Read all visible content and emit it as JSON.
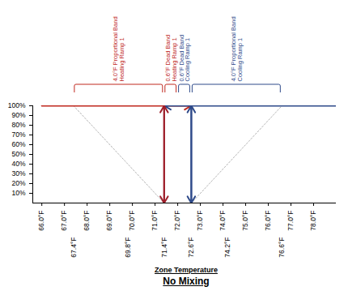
{
  "chart_data": {
    "type": "line",
    "title": "No Mixing",
    "xlabel": "Zone Temperature",
    "xlim": [
      65.6,
      79.0
    ],
    "xticks": [
      {
        "value": 66,
        "label": "66.0°F"
      },
      {
        "value": 67,
        "label": "67.0°F"
      },
      {
        "value": 68,
        "label": "68.0°F"
      },
      {
        "value": 69,
        "label": "69.0°F"
      },
      {
        "value": 70,
        "label": "70.0°F"
      },
      {
        "value": 71,
        "label": "71.0°F"
      },
      {
        "value": 72,
        "label": "72.0°F"
      },
      {
        "value": 73,
        "label": "73.0°F"
      },
      {
        "value": 74,
        "label": "74.0°F"
      },
      {
        "value": 75,
        "label": "75.0°F"
      },
      {
        "value": 76,
        "label": "76.0°F"
      },
      {
        "value": 77,
        "label": "77.0°F"
      },
      {
        "value": 78,
        "label": "78.0°F"
      }
    ],
    "xticks2": [
      {
        "value": 67.4,
        "label": "67.4°F"
      },
      {
        "value": 69.8,
        "label": "69.8°F"
      },
      {
        "value": 71.4,
        "label": "71.4°F"
      },
      {
        "value": 72.6,
        "label": "72.6°F"
      },
      {
        "value": 74.2,
        "label": "74.2°F"
      },
      {
        "value": 76.6,
        "label": "76.6°F"
      }
    ],
    "ylim": [
      0,
      100
    ],
    "yticks": [
      {
        "value": 10,
        "label": "10%"
      },
      {
        "value": 20,
        "label": "20%"
      },
      {
        "value": 30,
        "label": "30%"
      },
      {
        "value": 40,
        "label": "40%"
      },
      {
        "value": 50,
        "label": "50%"
      },
      {
        "value": 60,
        "label": "60%"
      },
      {
        "value": 70,
        "label": "70%"
      },
      {
        "value": 80,
        "label": "80%"
      },
      {
        "value": 90,
        "label": "90%"
      },
      {
        "value": 100,
        "label": "100%"
      }
    ],
    "series": [
      {
        "color": "#b5b5b5",
        "line_style": "dotted",
        "x": [
          67.4,
          71.4
        ],
        "values": [
          100,
          0
        ]
      },
      {
        "color": "#b5b5b5",
        "line_style": "dotted",
        "x": [
          72.6,
          76.6
        ],
        "values": [
          0,
          100
        ]
      },
      {
        "color": "#c0281e",
        "marker": "arrow",
        "x": [
          66,
          72.6
        ],
        "values": [
          100,
          100
        ]
      },
      {
        "color": "#2e4a8a",
        "marker": "arrow",
        "x": [
          79.0,
          71.4
        ],
        "values": [
          100,
          100
        ]
      },
      {
        "color": "#9e1f2a",
        "marker": "double_arrow",
        "x": [
          71.4,
          71.4
        ],
        "values": [
          0,
          100
        ]
      },
      {
        "color": "#2e4a8a",
        "marker": "double_arrow",
        "x": [
          72.6,
          72.6
        ],
        "values": [
          0,
          100
        ]
      }
    ],
    "annotations": [
      {
        "lines": [
          "4.0°F Proportional Band",
          "Heating Ramp 1"
        ],
        "x1": 67.4,
        "x2": 71.4,
        "color": "#c0281e"
      },
      {
        "lines": [
          "0.6°F Dead Band",
          "Heating Ramp 1"
        ],
        "x1": 71.4,
        "x2": 72.0,
        "color": "#c0281e"
      },
      {
        "lines": [
          "0.6°F Dead Band",
          "Cooling Ramp 1"
        ],
        "x1": 72.0,
        "x2": 72.6,
        "color": "#2e4a8a"
      },
      {
        "lines": [
          "4.0°F Proportional Band",
          "Cooling Ramp 1"
        ],
        "x1": 72.6,
        "x2": 76.6,
        "color": "#2e4a8a"
      }
    ]
  }
}
